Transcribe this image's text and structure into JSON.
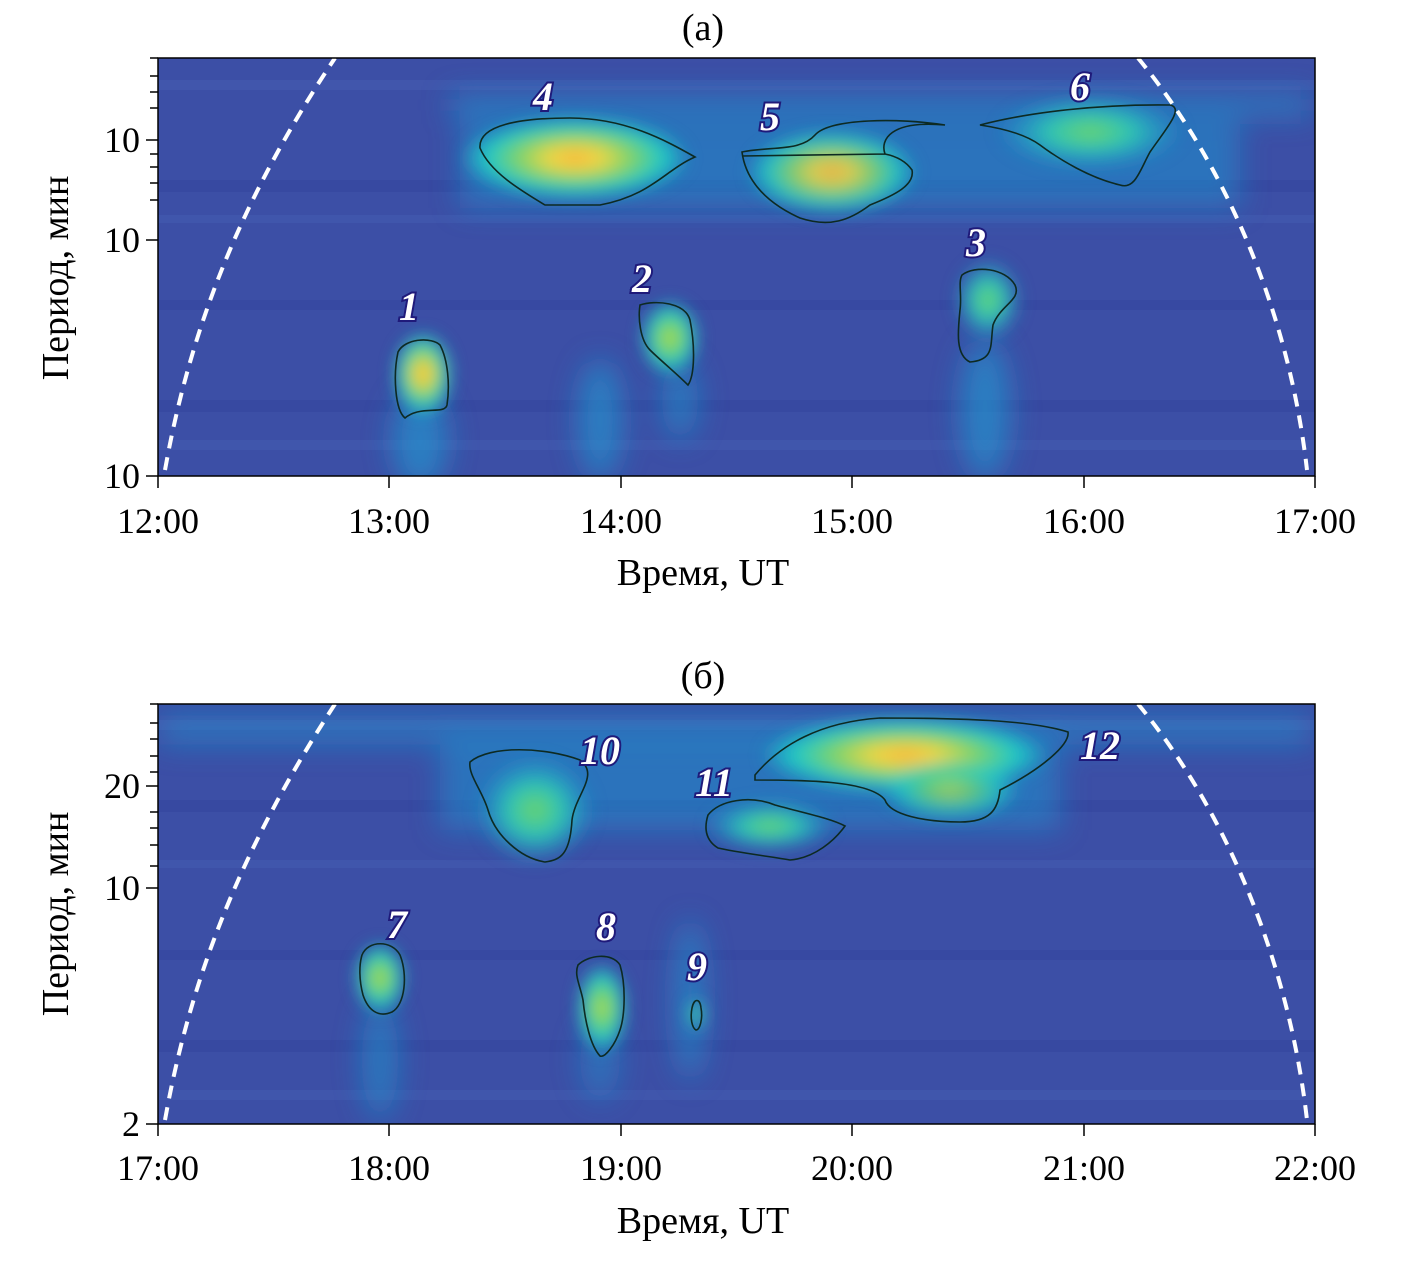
{
  "colors": {
    "background": "#3c4fa6",
    "low": "#2f3f9a",
    "mid": "#1b9fd6",
    "cyan": "#1ec8c8",
    "green": "#6ed36a",
    "yellow": "#f5d742",
    "orange": "#f2a23a",
    "contour": "#0d2a22",
    "coi_line": "#ffffff"
  },
  "chart_data": [
    {
      "type": "heatmap",
      "title": "(a)",
      "xlabel": "Время, UT",
      "ylabel": "Период, мин",
      "x_ticks": [
        "12:00",
        "13:00",
        "14:00",
        "15:00",
        "16:00",
        "17:00"
      ],
      "xlim_hours": [
        12,
        17
      ],
      "y_ticks": [
        "10",
        "10",
        "10"
      ],
      "y_scale": "log",
      "cone_of_influence": "dashed white arcs",
      "regions": [
        {
          "label": "1",
          "time_center": 13.15,
          "intensity": 0.95
        },
        {
          "label": "2",
          "time_center": 14.22,
          "intensity": 0.6
        },
        {
          "label": "3",
          "time_center": 15.55,
          "intensity": 0.55
        },
        {
          "label": "4",
          "time_center": 13.8,
          "intensity": 1.0
        },
        {
          "label": "5",
          "time_center": 14.95,
          "intensity": 0.9
        },
        {
          "label": "6",
          "time_center": 16.05,
          "intensity": 0.6
        }
      ]
    },
    {
      "type": "heatmap",
      "title": "(б)",
      "xlabel": "Время, UT",
      "ylabel": "Период, мин",
      "x_ticks": [
        "17:00",
        "18:00",
        "19:00",
        "20:00",
        "21:00",
        "22:00"
      ],
      "xlim_hours": [
        17,
        22
      ],
      "y_ticks": [
        "20",
        "10",
        "2"
      ],
      "ylim": [
        2,
        40
      ],
      "y_scale": "log",
      "cone_of_influence": "dashed white arcs",
      "regions": [
        {
          "label": "7",
          "time_center": 17.97,
          "intensity": 0.55
        },
        {
          "label": "8",
          "time_center": 18.92,
          "intensity": 0.65
        },
        {
          "label": "9",
          "time_center": 19.32,
          "intensity": 0.35
        },
        {
          "label": "10",
          "time_center": 18.6,
          "intensity": 0.5
        },
        {
          "label": "11",
          "time_center": 19.6,
          "intensity": 0.5
        },
        {
          "label": "12",
          "time_center": 20.3,
          "intensity": 1.0
        }
      ]
    }
  ]
}
